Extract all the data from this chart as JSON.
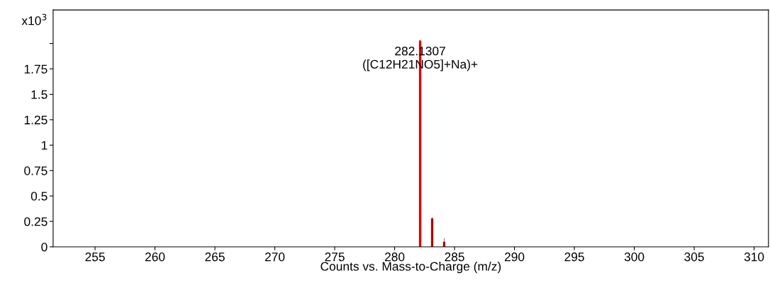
{
  "chart_data": {
    "type": "bar",
    "xlabel": "Counts vs. Mass-to-Charge (m/z)",
    "annotations": [
      "x10$^{3}$",
      {
        "text": "282.1307\n([C12H21NO5]+Na)+",
        "x": 282.1307,
        "y": 2.03
      }
    ],
    "series": [
      {
        "color": "#e00000",
        "x": [
          282.1307,
          283.134,
          284.137
        ],
        "values": [
          2.03,
          0.28,
          0.05
        ]
      },
      {
        "color": "#000000",
        "x": [
          283.134,
          284.137
        ],
        "values": [
          0.29,
          0.085
        ]
      }
    ],
    "xlim": [
      251.5,
      311.2
    ],
    "xticks": [
      255,
      260,
      265,
      270,
      275,
      280,
      285,
      290,
      295,
      300,
      305,
      310
    ],
    "ylim": [
      0,
      2.33
    ],
    "yticks": [
      0,
      0.25,
      0.5,
      0.75,
      1,
      1.25,
      1.5,
      1.75,
      {
        "value": 2,
        "label": null
      }
    ],
    "grid": false,
    "legend": false
  }
}
